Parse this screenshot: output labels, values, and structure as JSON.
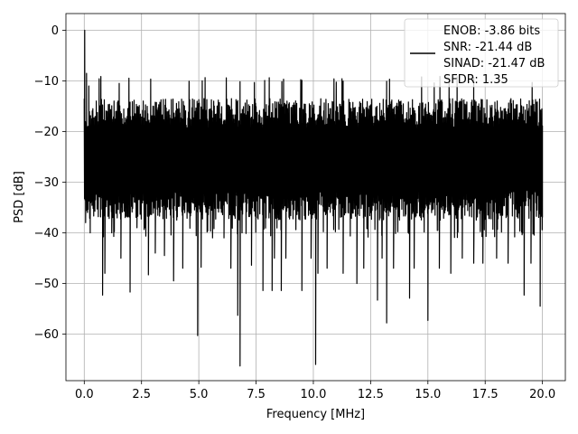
{
  "chart_data": {
    "type": "line",
    "xlabel": "Frequency [MHz]",
    "ylabel": "PSD [dB]",
    "xlim": [
      -0.8,
      21.0
    ],
    "ylim": [
      -69.2,
      3.3
    ],
    "grid": true,
    "legend_position": "top-right",
    "x_ticks": [
      {
        "value": 0.0,
        "label": "0.0"
      },
      {
        "value": 2.5,
        "label": "2.5"
      },
      {
        "value": 5.0,
        "label": "5.0"
      },
      {
        "value": 7.5,
        "label": "7.5"
      },
      {
        "value": 10.0,
        "label": "10.0"
      },
      {
        "value": 12.5,
        "label": "12.5"
      },
      {
        "value": 15.0,
        "label": "15.0"
      },
      {
        "value": 17.5,
        "label": "17.5"
      },
      {
        "value": 20.0,
        "label": "20.0"
      }
    ],
    "y_ticks": [
      {
        "value": 0,
        "label": "0"
      },
      {
        "value": -10,
        "label": "−10"
      },
      {
        "value": -20,
        "label": "−20"
      },
      {
        "value": -30,
        "label": "−30"
      },
      {
        "value": -40,
        "label": "−40"
      },
      {
        "value": -50,
        "label": "−50"
      },
      {
        "value": -60,
        "label": "−60"
      }
    ],
    "series": [
      {
        "name": "ENOB: -3.86 bits\nSNR: -21.44 dB\nSINAD: -21.47 dB\nSFDR: 1.35",
        "color": "#000000",
        "noise_floor": {
          "top": -13.5,
          "bottom": -37.5,
          "occasional_top": -10.5,
          "occasional_bottom": -41
        },
        "x_start": 0.0,
        "x_end": 20.0,
        "points": [
          [
            0.0,
            -16
          ],
          [
            0.02,
            0.0
          ],
          [
            0.06,
            -38
          ],
          [
            0.1,
            -8.5
          ],
          [
            0.14,
            -36
          ],
          [
            0.2,
            -11
          ],
          [
            0.26,
            -40
          ],
          [
            0.8,
            -52.3
          ],
          [
            0.9,
            -48
          ],
          [
            1.2,
            -40
          ],
          [
            1.6,
            -45
          ],
          [
            2.0,
            -51.7
          ],
          [
            2.3,
            -39
          ],
          [
            2.8,
            -48.3
          ],
          [
            3.1,
            -44
          ],
          [
            3.5,
            -44.5
          ],
          [
            3.9,
            -49.5
          ],
          [
            4.3,
            -47
          ],
          [
            4.95,
            -60.3
          ],
          [
            5.1,
            -46.8
          ],
          [
            5.6,
            -41
          ],
          [
            6.1,
            -41
          ],
          [
            6.4,
            -47
          ],
          [
            6.7,
            -56.3
          ],
          [
            6.8,
            -66.3
          ],
          [
            7.3,
            -46.4
          ],
          [
            7.8,
            -51.4
          ],
          [
            8.2,
            -51.4
          ],
          [
            8.3,
            -45
          ],
          [
            8.6,
            -51.4
          ],
          [
            8.8,
            -45
          ],
          [
            9.5,
            -51.4
          ],
          [
            9.9,
            -45
          ],
          [
            10.1,
            -66.0
          ],
          [
            10.2,
            -48
          ],
          [
            10.6,
            -47
          ],
          [
            11.3,
            -48
          ],
          [
            11.9,
            -50
          ],
          [
            12.2,
            -47
          ],
          [
            12.8,
            -53.3
          ],
          [
            13.0,
            -45
          ],
          [
            13.2,
            -57.8
          ],
          [
            13.5,
            -47
          ],
          [
            14.2,
            -52.9
          ],
          [
            14.4,
            -47
          ],
          [
            15.0,
            -57.3
          ],
          [
            15.5,
            -47
          ],
          [
            16.0,
            -48
          ],
          [
            16.5,
            -45
          ],
          [
            17.0,
            -46
          ],
          [
            17.4,
            -46
          ],
          [
            18.0,
            -45
          ],
          [
            18.5,
            -46
          ],
          [
            19.2,
            -52.3
          ],
          [
            19.5,
            -46
          ],
          [
            19.9,
            -54.5
          ],
          [
            20.0,
            -37
          ]
        ]
      }
    ]
  }
}
